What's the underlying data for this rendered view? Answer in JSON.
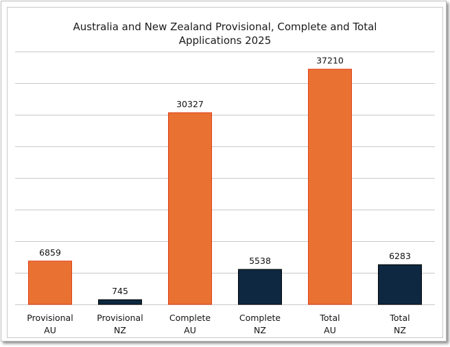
{
  "chart_data": {
    "type": "bar",
    "title_line1": "Australia and New Zealand Provisional, Complete and Total",
    "title_line2": "Applications 2025",
    "categories": [
      [
        "Provisional",
        "AU"
      ],
      [
        "Provisional",
        "NZ"
      ],
      [
        "Complete",
        "AU"
      ],
      [
        "Complete",
        "NZ"
      ],
      [
        "Total",
        "AU"
      ],
      [
        "Total",
        "NZ"
      ]
    ],
    "values": [
      6859,
      745,
      30327,
      5538,
      37210,
      6283
    ],
    "bar_colors": [
      "#E97132",
      "#0E2841",
      "#E97132",
      "#0E2841",
      "#E97132",
      "#0E2841"
    ],
    "bar_border_colors": [
      "#E0401A",
      "#000000",
      "#E0401A",
      "#000000",
      "#E0401A",
      "#000000"
    ],
    "ylim": [
      0,
      40000
    ],
    "y_grid_step": 5000,
    "grid": true,
    "y_tick_labels_shown": false,
    "data_labels": true,
    "legend": "none"
  }
}
